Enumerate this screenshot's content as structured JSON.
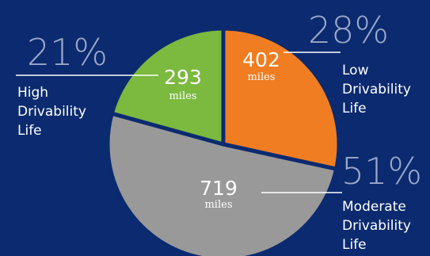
{
  "chart_data": {
    "type": "pie",
    "unit": "miles",
    "slices": [
      {
        "value": 402,
        "percent": "28%",
        "label_lines": [
          "Low",
          "Drivability",
          "Life"
        ],
        "color": "#f07d22"
      },
      {
        "value": 719,
        "percent": "51%",
        "label_lines": [
          "Moderate",
          "Drivability",
          "Life"
        ],
        "color": "#999999"
      },
      {
        "value": 293,
        "percent": "21%",
        "label_lines": [
          "High",
          "Drivability",
          "Life"
        ],
        "color": "#7bb93f"
      }
    ],
    "background": "#0b2a6f",
    "edge_color": "#0b2a6f"
  }
}
